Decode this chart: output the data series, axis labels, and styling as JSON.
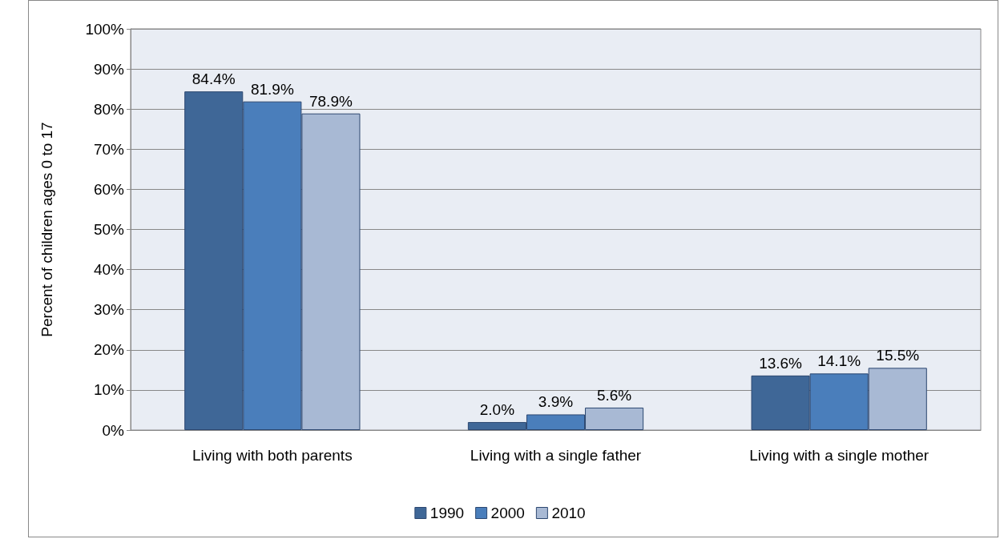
{
  "chart_data": {
    "type": "bar",
    "ylabel": "Percent of children ages 0 to 17",
    "categories": [
      "Living with both parents",
      "Living with a single father",
      "Living with a single mother"
    ],
    "series": [
      {
        "name": "1990",
        "color": "#3f6797",
        "values": [
          84.4,
          2.0,
          13.6
        ],
        "value_labels": [
          "84.4%",
          "2.0%",
          "13.6%"
        ]
      },
      {
        "name": "2000",
        "color": "#4a7ebb",
        "values": [
          81.9,
          3.9,
          14.1
        ],
        "value_labels": [
          "81.9%",
          "3.9%",
          "14.1%"
        ]
      },
      {
        "name": "2010",
        "color": "#a8b9d4",
        "values": [
          78.9,
          5.6,
          15.5
        ],
        "value_labels": [
          "78.9%",
          "5.6%",
          "15.5%"
        ]
      }
    ],
    "ylim": [
      0,
      100
    ],
    "yticks": [
      {
        "value": 0,
        "label": "0%"
      },
      {
        "value": 10,
        "label": "10%"
      },
      {
        "value": 20,
        "label": "20%"
      },
      {
        "value": 30,
        "label": "30%"
      },
      {
        "value": 40,
        "label": "40%"
      },
      {
        "value": 50,
        "label": "50%"
      },
      {
        "value": 60,
        "label": "60%"
      },
      {
        "value": 70,
        "label": "70%"
      },
      {
        "value": 80,
        "label": "80%"
      },
      {
        "value": 90,
        "label": "90%"
      },
      {
        "value": 100,
        "label": "100%"
      }
    ],
    "grid": "y",
    "legend": "bottom"
  }
}
